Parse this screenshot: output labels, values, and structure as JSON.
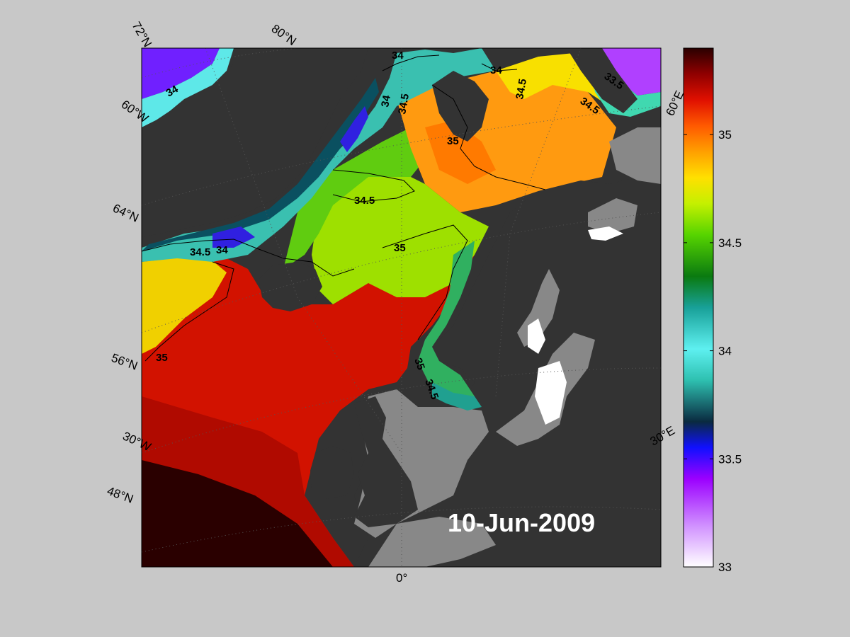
{
  "map": {
    "date": "10-Jun-2009",
    "grid_labels": {
      "lat_72": "72°N",
      "lat_80": "80°N",
      "lat_60_w": "60°W",
      "lat_64": "64°N",
      "lat_56": "56°N",
      "lon_30w": "30°W",
      "lat_48": "48°N",
      "lon_0": "0°",
      "lon_30e": "30°E",
      "lon_60e": "60°E"
    },
    "contour_labels": [
      "34",
      "34",
      "34",
      "34.5",
      "34.5",
      "34.5",
      "33.5",
      "35",
      "34.5",
      "35",
      "34.5",
      "34",
      "35",
      "35",
      "34.5",
      "33.5"
    ],
    "colors": {
      "land": "#333333",
      "masked": "#888888",
      "background": "#c8c8c8"
    }
  },
  "colorbar": {
    "min": 33,
    "max": 35.4,
    "ticks": [
      "33",
      "33.5",
      "34",
      "34.5",
      "35"
    ],
    "stops": [
      "#ffffff",
      "#9b00ff",
      "#1010ff",
      "#0a3850",
      "#2ec0b0",
      "#5ef0f0",
      "#18a098",
      "#0a7a10",
      "#56d400",
      "#c4f000",
      "#ffe000",
      "#ffa000",
      "#ff5a00",
      "#e01000",
      "#900000",
      "#2a0000"
    ]
  }
}
